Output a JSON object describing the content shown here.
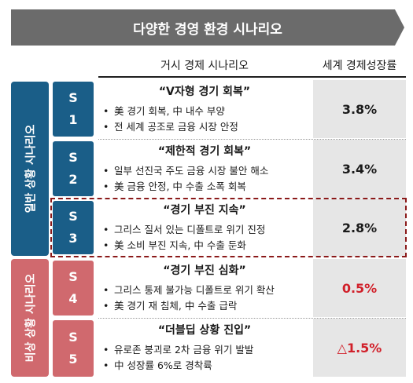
{
  "banner_title": "다양한 경영 환경 시나리오",
  "headers": {
    "macro": "거시 경제 시나리오",
    "growth": "세계 경제성장률"
  },
  "groups": {
    "normal": "일반 상황 시나리오",
    "crisis": "비상 상황 시나리오"
  },
  "scenarios": [
    {
      "letter": "S",
      "num": "1",
      "title": "“V자형 경기 회복”",
      "bullets": [
        "美 경기 회복, 中 내수 부양",
        "전 세계 공조로 금융 시장 안정"
      ],
      "growth": "3.8%"
    },
    {
      "letter": "S",
      "num": "2",
      "title": "“제한적 경기 회복”",
      "bullets": [
        "일부 선진국 주도 금융 시장 불안 해소",
        "美 금융 안정, 中 수출 소폭 회복"
      ],
      "growth": "3.4%"
    },
    {
      "letter": "S",
      "num": "3",
      "title": "“경기 부진 지속”",
      "bullets": [
        "그리스 질서 있는 디폴트로 위기 진정",
        "美 소비 부진 지속, 中 수출 둔화"
      ],
      "growth": "2.8%"
    },
    {
      "letter": "S",
      "num": "4",
      "title": "“경기 부진 심화”",
      "bullets": [
        "그리스 통제 불가능 디폴트로 위기 확산",
        "美 경기 재 침체, 中 수출 급락"
      ],
      "growth": "0.5%"
    },
    {
      "letter": "S",
      "num": "5",
      "title": "“더블딥 상황 진입”",
      "bullets": [
        "유로존 붕괴로 2차 금융 위기 발발",
        "中 성장률 6%로 경착륙"
      ],
      "growth": "△1.5%"
    }
  ],
  "colors": {
    "normal": "#1a5e88",
    "crisis": "#d0696e",
    "negative_value": "#d1202a",
    "highlight_border": "#8b1a1a"
  }
}
